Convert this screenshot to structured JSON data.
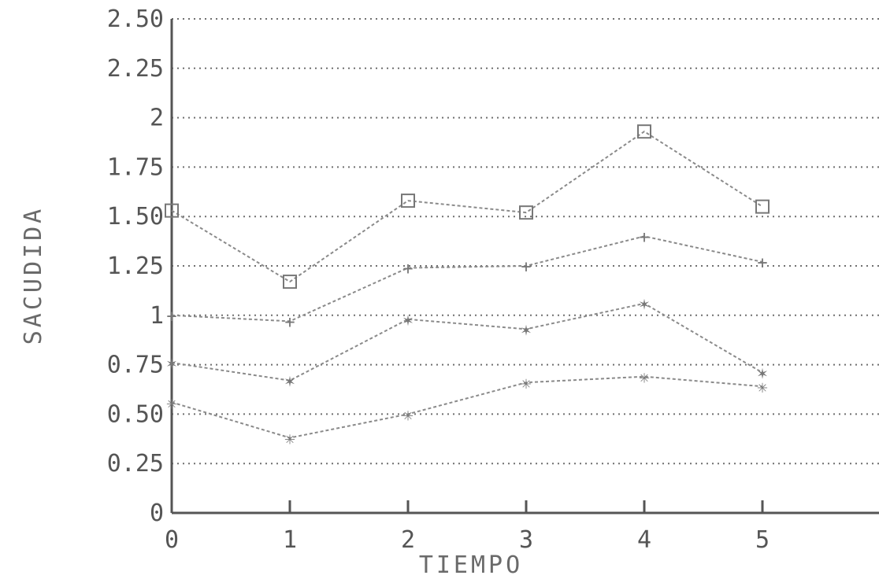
{
  "chart_data": {
    "type": "line",
    "xlabel": "TIEMPO",
    "ylabel": "SACUDIDA",
    "xlim": [
      0,
      6
    ],
    "ylim": [
      0,
      2.5
    ],
    "x": [
      0,
      1,
      2,
      3,
      4,
      5
    ],
    "x_ticks": [
      "0",
      "1",
      "2",
      "3",
      "4",
      "5"
    ],
    "y_ticks": [
      {
        "value": 0,
        "label": "0"
      },
      {
        "value": 0.25,
        "label": "0.25"
      },
      {
        "value": 0.5,
        "label": "0.50"
      },
      {
        "value": 0.75,
        "label": "0.75"
      },
      {
        "value": 1,
        "label": "1"
      },
      {
        "value": 1.25,
        "label": "1.25"
      },
      {
        "value": 1.5,
        "label": "1.50"
      },
      {
        "value": 1.75,
        "label": "1.75"
      },
      {
        "value": 2,
        "label": "2"
      },
      {
        "value": 2.25,
        "label": "2.25"
      },
      {
        "value": 2.5,
        "label": "2.50"
      }
    ],
    "grid": true,
    "series": [
      {
        "marker": "square",
        "values": [
          1.53,
          1.17,
          1.58,
          1.52,
          1.93,
          1.55
        ]
      },
      {
        "marker": "plus",
        "values": [
          1.0,
          0.97,
          1.24,
          1.25,
          1.4,
          1.27
        ]
      },
      {
        "marker": "star",
        "values": [
          0.76,
          0.67,
          0.98,
          0.93,
          1.06,
          0.71
        ]
      },
      {
        "marker": "asterisk",
        "values": [
          0.56,
          0.38,
          0.5,
          0.66,
          0.69,
          0.64
        ]
      }
    ]
  }
}
